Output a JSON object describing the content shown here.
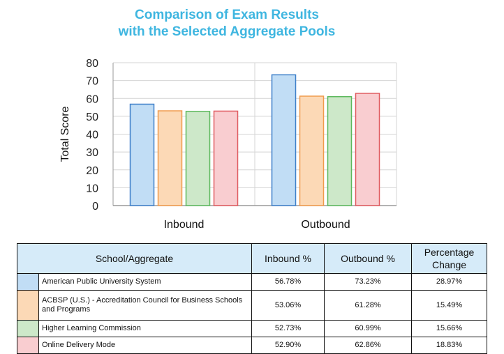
{
  "chart_data": {
    "type": "bar",
    "title_lines": [
      "Comparison of Exam Results",
      "with the Selected Aggregate Pools"
    ],
    "xlabel": "",
    "ylabel": "Total Score",
    "categories": [
      "Inbound",
      "Outbound"
    ],
    "ylim": [
      0,
      80
    ],
    "yticks": [
      0,
      10,
      20,
      30,
      40,
      50,
      60,
      70,
      80
    ],
    "grid": true,
    "series": [
      {
        "name": "American Public University System",
        "values": [
          56.78,
          73.23
        ],
        "fill": "#c1ddf5",
        "stroke": "#3d7fc9"
      },
      {
        "name": "ACBSP (U.S.) - Accreditation Council for Business Schools and Programs",
        "values": [
          53.06,
          61.28
        ],
        "fill": "#fcd9b6",
        "stroke": "#f09a4b"
      },
      {
        "name": "Higher Learning Commission",
        "values": [
          52.73,
          60.99
        ],
        "fill": "#cde8c9",
        "stroke": "#5cb85c"
      },
      {
        "name": "Online Delivery Mode",
        "values": [
          52.9,
          62.86
        ],
        "fill": "#f9cdd0",
        "stroke": "#e05a5f"
      }
    ]
  },
  "table": {
    "headers": [
      "School/Aggregate",
      "Inbound %",
      "Outbound %",
      "Percentage Change"
    ],
    "rows": [
      {
        "name": "American Public University System",
        "inbound": "56.78%",
        "outbound": "73.23%",
        "change": "28.97%"
      },
      {
        "name": "ACBSP (U.S.) - Accreditation Council for Business Schools and Programs",
        "inbound": "53.06%",
        "outbound": "61.28%",
        "change": "15.49%"
      },
      {
        "name": "Higher Learning Commission",
        "inbound": "52.73%",
        "outbound": "60.99%",
        "change": "15.66%"
      },
      {
        "name": "Online Delivery Mode",
        "inbound": "52.90%",
        "outbound": "62.86%",
        "change": "18.83%"
      }
    ]
  }
}
